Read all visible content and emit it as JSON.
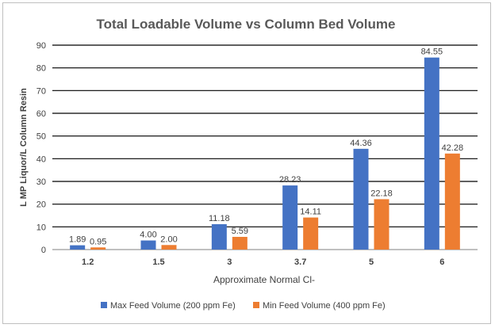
{
  "chart_data": {
    "type": "bar",
    "title": "Total Loadable Volume vs Column Bed Volume",
    "xlabel": "Approximate Normal Cl-",
    "ylabel": "L MP Liquor/L Column Resin",
    "ylim": [
      0,
      90
    ],
    "yticks": [
      0,
      10,
      20,
      30,
      40,
      50,
      60,
      70,
      80,
      90
    ],
    "grid": true,
    "legend_position": "bottom",
    "categories": [
      "1.2",
      "1.5",
      "3",
      "3.7",
      "5",
      "6"
    ],
    "series": [
      {
        "name": "Max Feed Volume (200 ppm Fe)",
        "color": "#4472C4",
        "values": [
          1.89,
          4.0,
          11.18,
          28.23,
          44.36,
          84.55
        ],
        "labels": [
          "1.89",
          "4.00",
          "11.18",
          "28.23",
          "44.36",
          "84.55"
        ]
      },
      {
        "name": "Min Feed Volume (400 ppm Fe)",
        "color": "#ED7D31",
        "values": [
          0.95,
          2.0,
          5.59,
          14.11,
          22.18,
          42.28
        ],
        "labels": [
          "0.95",
          "2.00",
          "5.59",
          "14.11",
          "22.18",
          "42.28"
        ]
      }
    ]
  }
}
